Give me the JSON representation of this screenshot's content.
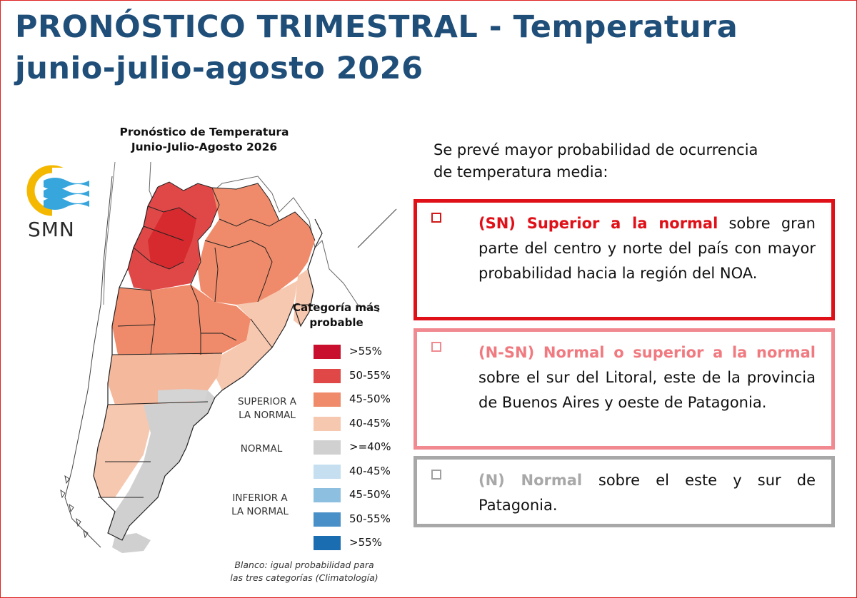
{
  "header": {
    "title_line1": "PRONÓSTICO TRIMESTRAL - Temperatura",
    "title_line2": "junio-julio-agosto 2026"
  },
  "logo": {
    "text": "SMN",
    "icon": "smn-sun-waves-icon"
  },
  "map": {
    "title_line1": "Pronóstico de Temperatura",
    "title_line2": "Junio-Julio-Agosto 2026",
    "legend_title_line1": "Categoría más",
    "legend_title_line2": "probable",
    "legend": [
      {
        "label": ">55%",
        "color": "#c8102e"
      },
      {
        "label": "50-55%",
        "color": "#e04848"
      },
      {
        "label": "45-50%",
        "color": "#ef8b6a"
      },
      {
        "label": "40-45%",
        "color": "#f7c8b0"
      },
      {
        "label": ">=40%",
        "color": "#d0d0d0"
      },
      {
        "label": "40-45%",
        "color": "#c6dff0"
      },
      {
        "label": "45-50%",
        "color": "#8dc0e0"
      },
      {
        "label": "50-55%",
        "color": "#4a90c8"
      },
      {
        "label": ">55%",
        "color": "#1a6db0"
      }
    ],
    "category_labels": {
      "superior_line1": "SUPERIOR A",
      "superior_line2": "LA NORMAL",
      "normal": "NORMAL",
      "inferior_line1": "INFERIOR A",
      "inferior_line2": "LA NORMAL"
    },
    "footnote_line1": "Blanco: igual probabilidad para",
    "footnote_line2": "las tres categorías (Climatología)"
  },
  "forecast": {
    "intro_line1": "Se prevé mayor probabilidad de ocurrencia",
    "intro_line2": "de temperatura media:",
    "items": [
      {
        "heading": "(SN) Superior a la normal",
        "body": " sobre gran parte del centro y norte del país con mayor probabilidad hacia la región del NOA.",
        "color": "#e01018"
      },
      {
        "heading": "(N-SN) Normal o superior a la normal",
        "body": " sobre el sur del Litoral, este de la provincia de Buenos Aires y oeste de Patagonia.",
        "color": "#f08a90"
      },
      {
        "heading": "(N) Normal ",
        "body": " sobre el este y sur de Patagonia.",
        "color": "#a8a8a8"
      }
    ]
  }
}
